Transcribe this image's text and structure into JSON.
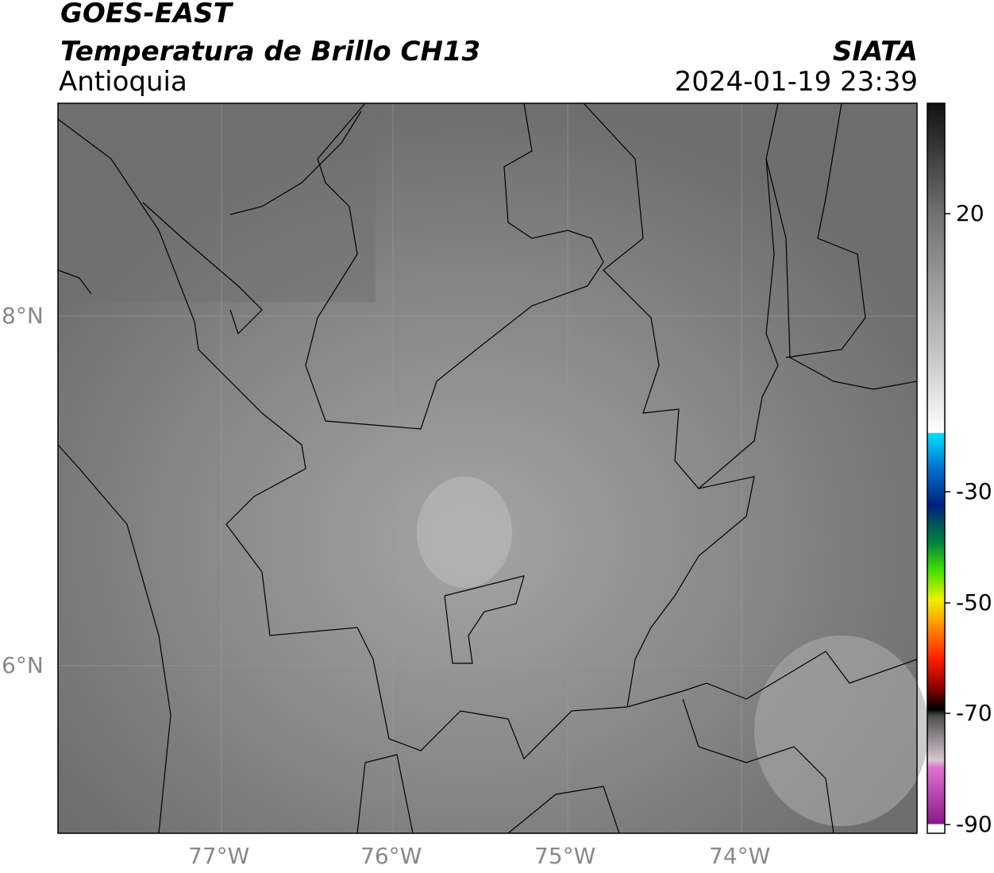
{
  "header": {
    "line1": "GOES-EAST",
    "line2": "Temperatura de Brillo CH13",
    "region": "Antioquia",
    "source": "SIATA",
    "datetime": "2024-01-19 23:39"
  },
  "map": {
    "xticks": [
      "77°W",
      "76°W",
      "75°W",
      "74°W"
    ],
    "yticks": [
      "8°N",
      "6°N"
    ]
  },
  "colorbar": {
    "ticks": [
      20,
      -30,
      -50,
      -70,
      -90
    ]
  }
}
